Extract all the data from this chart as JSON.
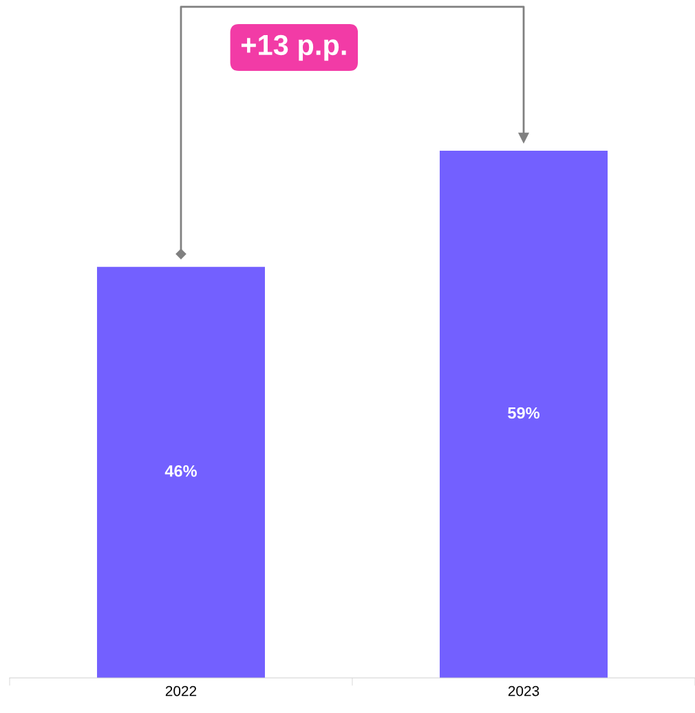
{
  "chart_data": {
    "type": "bar",
    "categories": [
      "2022",
      "2023"
    ],
    "values": [
      46,
      59
    ],
    "value_labels": [
      "46%",
      "59%"
    ],
    "color": "#7360ff",
    "tick_labels": "x",
    "grid": false,
    "annotations": [
      "+13 p.p."
    ]
  }
}
